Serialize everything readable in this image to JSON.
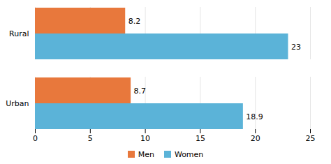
{
  "chart_data": {
    "type": "bar",
    "orientation": "horizontal",
    "categories": [
      "Rural",
      "Urban"
    ],
    "series": [
      {
        "name": "Men",
        "color": "#E8783C",
        "values": [
          8.2,
          8.7
        ]
      },
      {
        "name": "Women",
        "color": "#5BB3D8",
        "values": [
          23,
          18.9
        ]
      }
    ],
    "xlim": [
      0,
      25
    ],
    "xticks": [
      0,
      5,
      10,
      15,
      20,
      25
    ],
    "grid": true,
    "data_labels": true,
    "legend": "bottom"
  }
}
